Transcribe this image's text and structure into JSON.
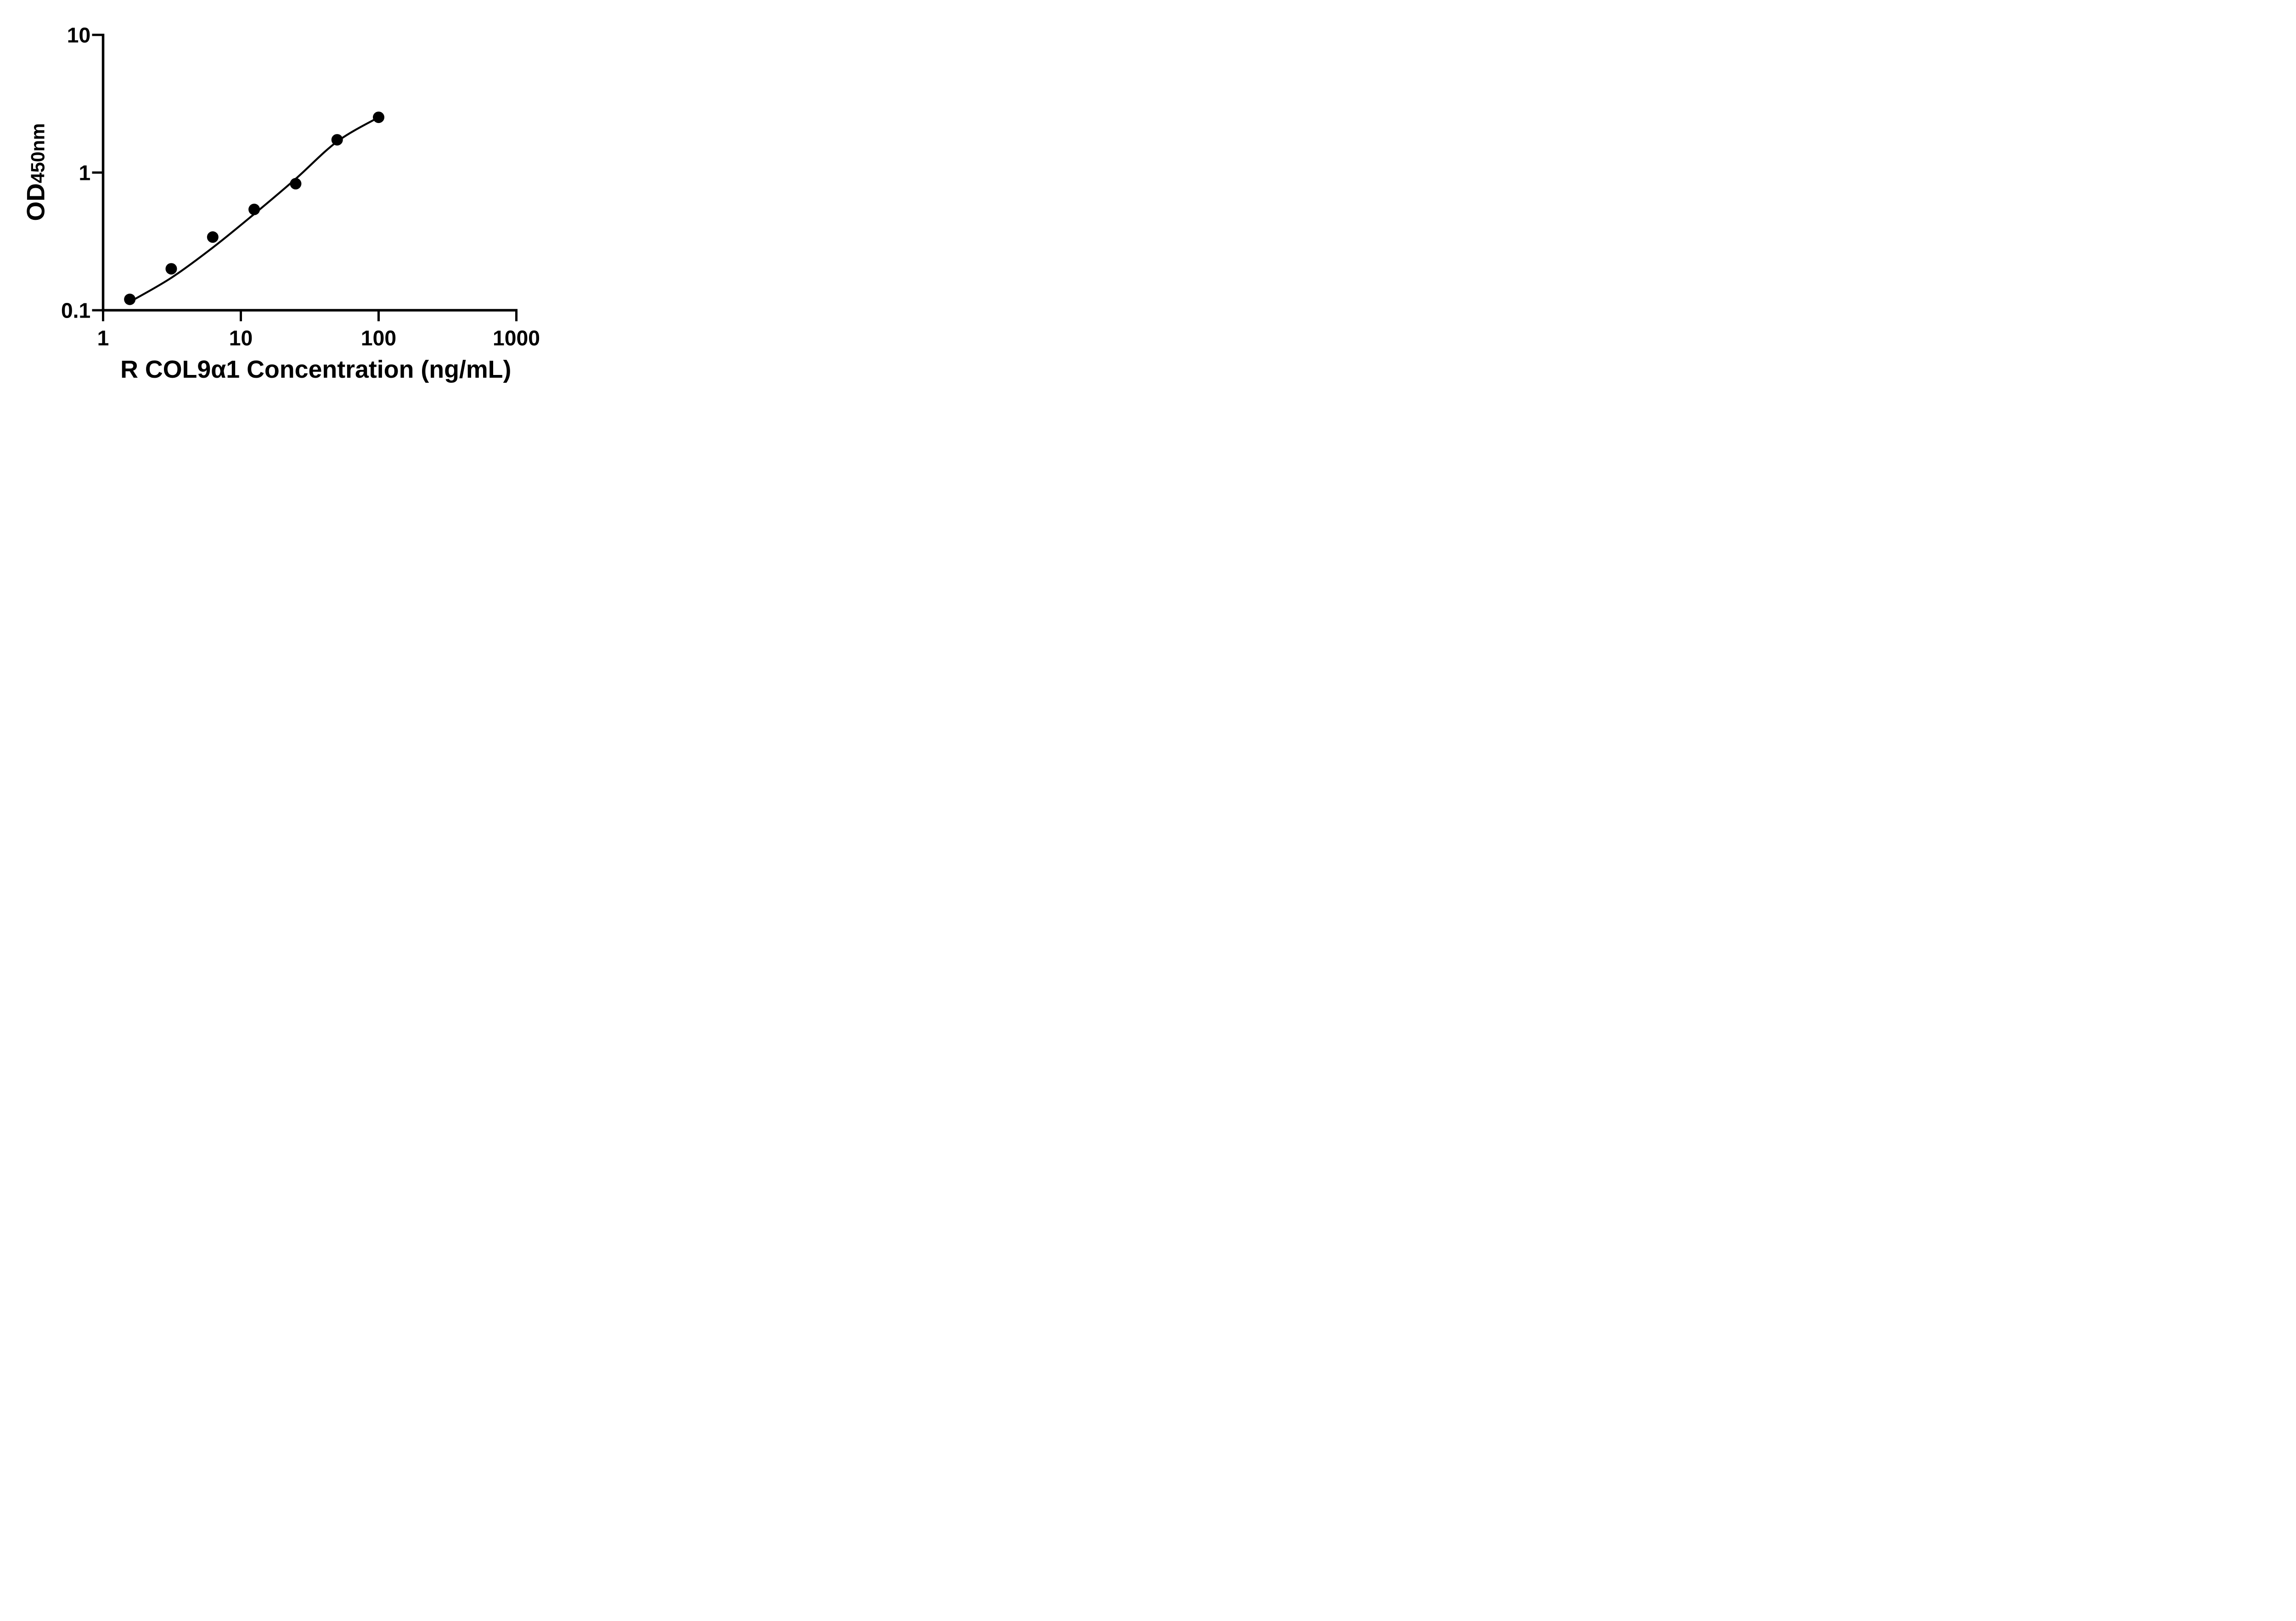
{
  "chart_data": {
    "type": "scatter",
    "title": "",
    "xlabel": "R COL9α1 Concentration (ng/mL)",
    "ylabel_main": "OD",
    "ylabel_sub": "450nm",
    "x_scale": "log10",
    "y_scale": "log10",
    "xlim": [
      1,
      1000
    ],
    "ylim": [
      0.1,
      10
    ],
    "grid": false,
    "legend_position": "none",
    "axis_color": "#000000",
    "background_color": "#ffffff",
    "x_ticks": [
      {
        "value": 1,
        "label": "1"
      },
      {
        "value": 10,
        "label": "10"
      },
      {
        "value": 100,
        "label": "100"
      },
      {
        "value": 1000,
        "label": "1000"
      }
    ],
    "y_ticks": [
      {
        "value": 0.1,
        "label": "0.1"
      },
      {
        "value": 1,
        "label": "1"
      },
      {
        "value": 10,
        "label": "10"
      }
    ],
    "series": [
      {
        "name": "standard-data-points",
        "type": "scatter",
        "marker": "filled-circle",
        "color": "#000000",
        "x": [
          1.5625,
          3.125,
          6.25,
          12.5,
          25,
          50,
          100
        ],
        "y": [
          0.12,
          0.2,
          0.34,
          0.54,
          0.83,
          1.73,
          2.52
        ]
      },
      {
        "name": "fitted-curve",
        "type": "line",
        "color": "#000000",
        "points": [
          [
            1.5625,
            0.115
          ],
          [
            3.125,
            0.172
          ],
          [
            6.25,
            0.285
          ],
          [
            12.5,
            0.5
          ],
          [
            25,
            0.9
          ],
          [
            50,
            1.68
          ],
          [
            100,
            2.52
          ]
        ]
      }
    ]
  }
}
